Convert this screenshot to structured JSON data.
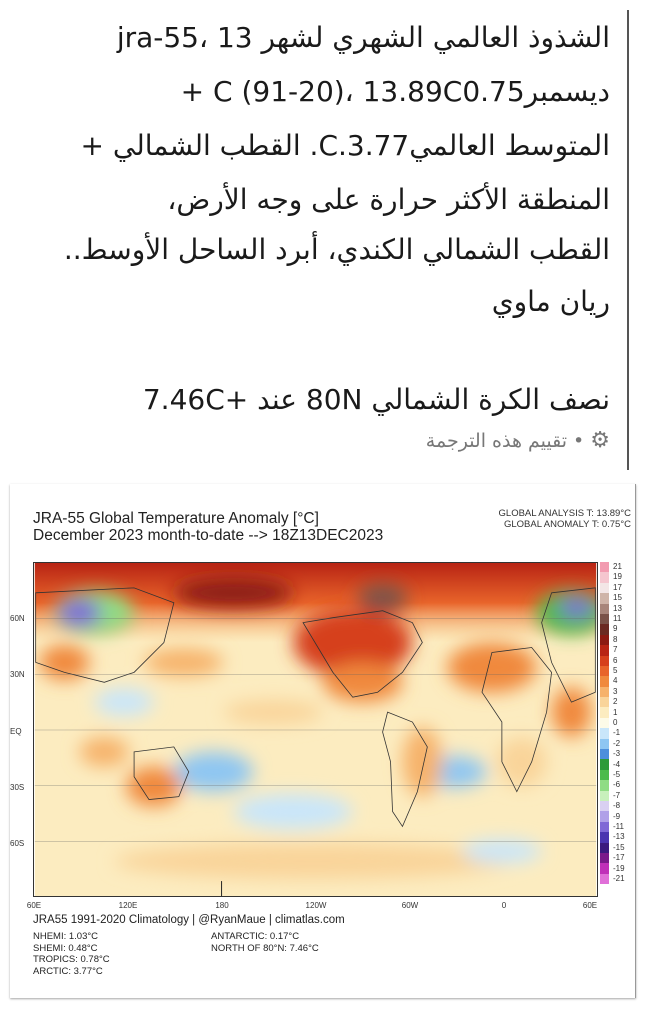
{
  "post": {
    "lines": [
      "الشذوذ العالمي الشهري لشهر 13 ،jra-55",
      "ديسمبرC (91-20)، 13.89C0.75 +",
      "المتوسط العالميC.3.77. القطب الشمالي +",
      "المنطقة الأكثر حرارة على وجه الأرض،",
      "القطب الشمالي الكندي، أبرد الساحل الأوسط..",
      "ريان ماوي",
      "نصف الكرة الشمالي 80N عند +7.46C"
    ],
    "rate_translation": "تقييم هذه الترجمة",
    "bullet": "•",
    "icon": "gear-icon"
  },
  "map": {
    "title": "JRA-55 Global Temperature Anomaly [°C]",
    "subtitle": "December 2023 month-to-date --> 18Z13DEC2023",
    "global_analysis": "GLOBAL ANALYSIS T: 13.89°C",
    "global_anomaly": "GLOBAL ANOMALY T: 0.75°C",
    "lat_labels": [
      "60N",
      "30N",
      "EQ",
      "30S",
      "60S"
    ],
    "lon_labels": [
      "60E",
      "120E",
      "180",
      "120W",
      "60W",
      "0",
      "60E"
    ],
    "colorbar": {
      "labels": [
        "21",
        "19",
        "17",
        "15",
        "13",
        "11",
        "9",
        "8",
        "7",
        "6",
        "5",
        "4",
        "3",
        "2",
        "1",
        "0",
        "-1",
        "-2",
        "-3",
        "-4",
        "-5",
        "-6",
        "-7",
        "-8",
        "-9",
        "-11",
        "-13",
        "-15",
        "-17",
        "-19",
        "-21"
      ],
      "colors": [
        "#f29bb0",
        "#f5c6cf",
        "#f3e6e6",
        "#cfb4a8",
        "#a8857a",
        "#7a5248",
        "#6b2a22",
        "#8c1a12",
        "#b82414",
        "#d6401c",
        "#e8642a",
        "#f0893c",
        "#f6b26b",
        "#f9d49a",
        "#fcecc0",
        "#fdfbe8",
        "#c9e6fa",
        "#8ec6f2",
        "#4d8fdc",
        "#2d9a3a",
        "#4cbb4c",
        "#8fdc84",
        "#c8f0bc",
        "#d9d0f2",
        "#b0a0e8",
        "#8068d6",
        "#4b34b0",
        "#3b1a7e",
        "#7a1a8a",
        "#c030b8",
        "#e070d8"
      ]
    },
    "footer_source": "JRA55 1991-2020 Climatology | @RyanMaue | climatlas.com",
    "stats_left": [
      "NHEMI: 1.03°C",
      "SHEMI: 0.48°C",
      "TROPICS: 0.78°C",
      "ARCTIC: 3.77°C"
    ],
    "stats_right": [
      "ANTARCTIC: 0.17°C",
      "NORTH OF 80°N: 7.46°C"
    ]
  }
}
